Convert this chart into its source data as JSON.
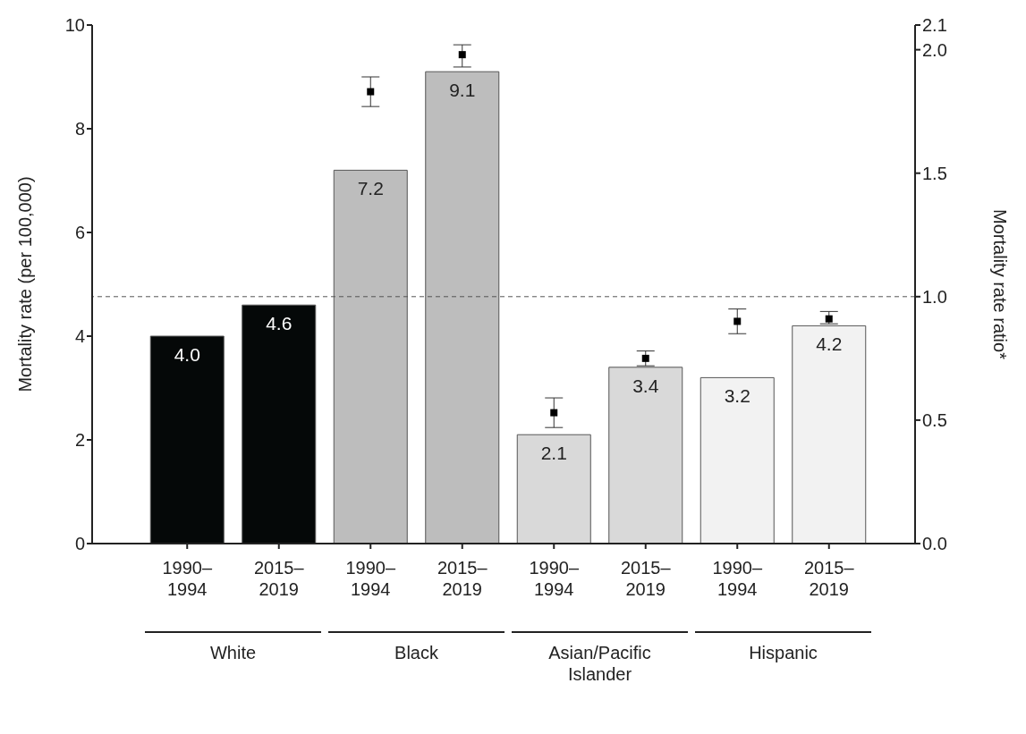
{
  "chart_data": {
    "type": "bar",
    "categories": [
      "1990–1994",
      "2015–2019",
      "1990–1994",
      "2015–2019",
      "1990–1994",
      "2015–2019",
      "1990–1994",
      "2015–2019"
    ],
    "series": [
      {
        "values": [
          4.0,
          4.6,
          7.2,
          9.1,
          2.1,
          3.4,
          3.2,
          4.2
        ],
        "colors": [
          "#050808",
          "#050808",
          "#bdbdbd",
          "#bdbdbd",
          "#d9d9d9",
          "#d9d9d9",
          "#f2f2f2",
          "#f2f2f2"
        ],
        "value_labels": [
          "4.0",
          "4.6",
          "7.2",
          "9.1",
          "2.1",
          "3.4",
          "3.2",
          "4.2"
        ]
      },
      {
        "type": "scatter",
        "axis": "y2",
        "color": "#000000",
        "marker": "square",
        "values": [
          null,
          null,
          1.83,
          1.98,
          0.53,
          0.75,
          0.9,
          0.91
        ],
        "errors": [
          null,
          null,
          [
            1.77,
            1.89
          ],
          [
            1.93,
            2.02
          ],
          [
            0.47,
            0.59
          ],
          [
            0.72,
            0.78
          ],
          [
            0.85,
            0.95
          ],
          [
            0.89,
            0.94
          ]
        ]
      }
    ],
    "ylabel": "Mortality rate (per 100,000)",
    "y2label": "Mortality rate ratio*",
    "ylim": [
      0,
      10
    ],
    "yticks": [
      0,
      2,
      4,
      6,
      8,
      10
    ],
    "y2lim": [
      0,
      2.1
    ],
    "y2ticks": [
      {
        "value": 0,
        "label": "0.0"
      },
      {
        "value": 0.5,
        "label": "0.5"
      },
      {
        "value": 1,
        "label": "1.0"
      },
      {
        "value": 1.5,
        "label": "1.5"
      },
      {
        "value": 2,
        "label": "2.0"
      },
      2.1
    ],
    "ref_lines": [
      {
        "axis": "y2",
        "value": 1,
        "color": "#555555",
        "line_style": "dashed"
      }
    ],
    "annotations": [
      "White",
      "Black",
      "Asian/Pacific Islander",
      "Hispanic"
    ],
    "grid": false,
    "legend": false
  }
}
